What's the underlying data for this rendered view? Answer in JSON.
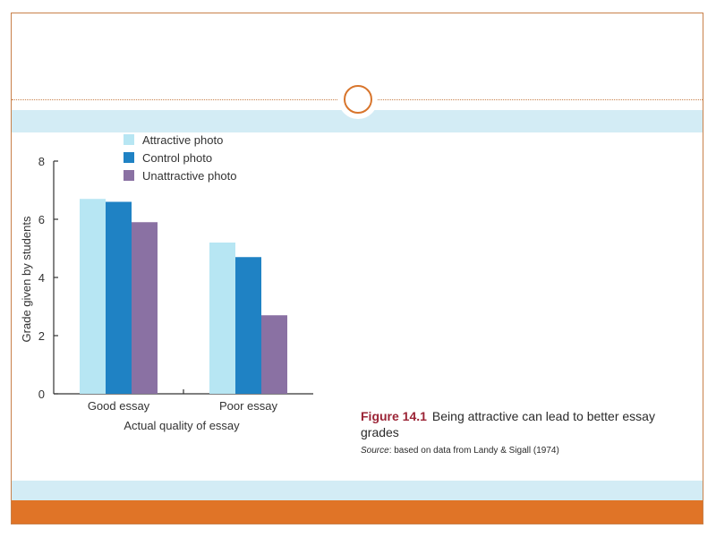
{
  "colors": {
    "accent": "#e07427",
    "strip": "#d3ecf5",
    "attractive": "#b7e6f3",
    "control": "#1f82c4",
    "unattractive": "#8a71a3",
    "figure_label": "#9b2436"
  },
  "caption": {
    "label": "Figure 14.1",
    "text": "Being attractive can lead to better essay grades",
    "source_label": "Source",
    "source_text": ": based on data from Landy & Sigall (1974)"
  },
  "chart_data": {
    "type": "bar",
    "categories": [
      "Good essay",
      "Poor essay"
    ],
    "series": [
      {
        "name": "Attractive photo",
        "values": [
          6.7,
          5.2
        ],
        "color": "#b7e6f3"
      },
      {
        "name": "Control photo",
        "values": [
          6.6,
          4.7
        ],
        "color": "#1f82c4"
      },
      {
        "name": "Unattractive photo",
        "values": [
          5.9,
          2.7
        ],
        "color": "#8a71a3"
      }
    ],
    "xlabel": "Actual quality of essay",
    "ylabel": "Grade given by students",
    "ylim": [
      0,
      8
    ],
    "yticks": [
      0,
      2,
      4,
      6,
      8
    ],
    "legend_position": "top-left",
    "grid": false
  }
}
